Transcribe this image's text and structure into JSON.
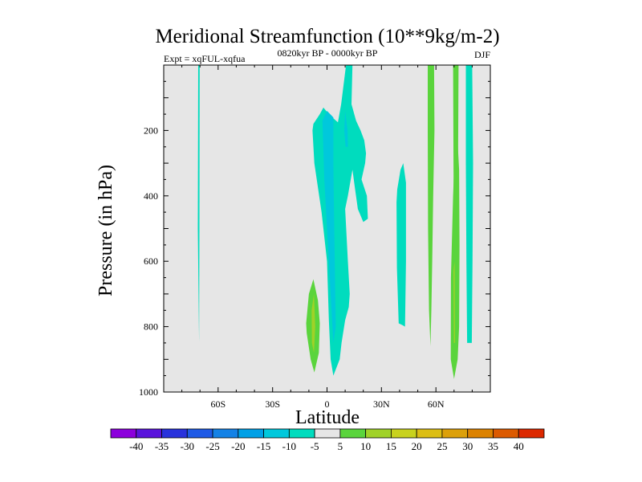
{
  "chart_data": {
    "type": "contour",
    "title": "Meridional Streamfunction (10**9kg/m-2)",
    "subtitle_left": "Expt = xqFUL-xqfua",
    "subtitle_center": "0820kyr BP - 0000kyr BP",
    "subtitle_right": "DJF",
    "xlabel": "Latitude",
    "ylabel": "Pressure (in hPa)",
    "xlim": [
      -90,
      90
    ],
    "ylim": [
      0,
      1000
    ],
    "y_inverted": true,
    "x_ticks": [
      {
        "value": -60,
        "label": "60S"
      },
      {
        "value": -30,
        "label": "30S"
      },
      {
        "value": 0,
        "label": "0"
      },
      {
        "value": 30,
        "label": "30N"
      },
      {
        "value": 60,
        "label": "60N"
      }
    ],
    "y_ticks": [
      {
        "value": 200,
        "label": "200"
      },
      {
        "value": 400,
        "label": "400"
      },
      {
        "value": 600,
        "label": "600"
      },
      {
        "value": 800,
        "label": "800"
      },
      {
        "value": 1000,
        "label": "1000"
      }
    ],
    "background_color": "#e6e6e6",
    "regions": [
      {
        "name": "-5",
        "color": "#00dcbe",
        "points": [
          [
            -71.0,
            0
          ],
          [
            -70.2,
            0
          ],
          [
            -70.3,
            500
          ],
          [
            -70.5,
            850
          ],
          [
            -71.2,
            500
          ]
        ]
      },
      {
        "name": "-5",
        "color": "#00dcbe",
        "points": [
          [
            -7.5,
            180
          ],
          [
            -4,
            150
          ],
          [
            -2,
            130
          ],
          [
            1,
            150
          ],
          [
            4,
            165
          ],
          [
            6,
            175
          ],
          [
            7.8,
            120
          ],
          [
            10.5,
            0
          ],
          [
            14,
            0
          ],
          [
            13.5,
            120
          ],
          [
            16,
            170
          ],
          [
            18.5,
            200
          ],
          [
            20.5,
            230
          ],
          [
            21.5,
            270
          ],
          [
            21,
            300
          ],
          [
            19,
            350
          ],
          [
            22,
            400
          ],
          [
            22.5,
            470
          ],
          [
            20,
            480
          ],
          [
            17,
            440
          ],
          [
            15.5,
            380
          ],
          [
            14,
            320
          ],
          [
            11.5,
            400
          ],
          [
            10,
            440
          ],
          [
            11.5,
            600
          ],
          [
            12.5,
            700
          ],
          [
            12,
            740
          ],
          [
            10,
            780
          ],
          [
            8,
            850
          ],
          [
            7,
            900
          ],
          [
            3.5,
            950
          ],
          [
            2,
            900
          ],
          [
            1,
            780
          ],
          [
            0,
            600
          ],
          [
            -3,
            450
          ],
          [
            -7,
            300
          ],
          [
            -8,
            200
          ]
        ]
      },
      {
        "name": "-5",
        "color": "#00dcbe",
        "points": [
          [
            38.7,
            380
          ],
          [
            40.5,
            320
          ],
          [
            42,
            300
          ],
          [
            43.5,
            360
          ],
          [
            43.5,
            600
          ],
          [
            43,
            800
          ],
          [
            41.5,
            795
          ],
          [
            39.5,
            790
          ],
          [
            38.5,
            620
          ],
          [
            38.3,
            420
          ]
        ]
      },
      {
        "name": "-5",
        "color": "#00dcbe",
        "points": [
          [
            76.5,
            0
          ],
          [
            80,
            0
          ],
          [
            80.5,
            300
          ],
          [
            80.2,
            600
          ],
          [
            79.8,
            850
          ],
          [
            78.5,
            850
          ],
          [
            77.2,
            850
          ],
          [
            76.8,
            600
          ],
          [
            76.5,
            300
          ]
        ]
      },
      {
        "name": "-10",
        "color": "#00c8dc",
        "points": [
          [
            -2.5,
            170
          ],
          [
            0,
            140
          ],
          [
            3.5,
            160
          ],
          [
            3.5,
            300
          ],
          [
            4,
            500
          ],
          [
            4.8,
            800
          ],
          [
            3.5,
            850
          ],
          [
            1,
            600
          ],
          [
            -1.5,
            350
          ]
        ]
      },
      {
        "name": "-10",
        "color": "#00c8dc",
        "points": [
          [
            10,
            140
          ],
          [
            11.3,
            200
          ],
          [
            11.5,
            250
          ],
          [
            10.2,
            250
          ],
          [
            9.5,
            200
          ]
        ]
      },
      {
        "name": "5",
        "color": "#5ad43c",
        "points": [
          [
            -11.5,
            790
          ],
          [
            -10,
            700
          ],
          [
            -7.5,
            655
          ],
          [
            -5,
            720
          ],
          [
            -4,
            790
          ],
          [
            -4.5,
            880
          ],
          [
            -7,
            940
          ],
          [
            -9,
            900
          ],
          [
            -11.2,
            820
          ]
        ]
      },
      {
        "name": "5",
        "color": "#5ad43c",
        "points": [
          [
            55.5,
            0
          ],
          [
            59,
            0
          ],
          [
            59.2,
            200
          ],
          [
            58.5,
            400
          ],
          [
            58,
            600
          ],
          [
            57.5,
            750
          ],
          [
            57,
            860
          ],
          [
            56.2,
            750
          ],
          [
            55.7,
            500
          ],
          [
            55.5,
            200
          ]
        ]
      },
      {
        "name": "5",
        "color": "#5ad43c",
        "points": [
          [
            69.5,
            0
          ],
          [
            72.5,
            0
          ],
          [
            72.3,
            200
          ],
          [
            72,
            500
          ],
          [
            72.2,
            750
          ],
          [
            71.5,
            850
          ],
          [
            70.5,
            850
          ],
          [
            70,
            600
          ],
          [
            69.7,
            300
          ]
        ]
      },
      {
        "name": "5",
        "color": "#5ad43c",
        "points": [
          [
            71,
            130
          ],
          [
            72.8,
            320
          ],
          [
            73,
            550
          ],
          [
            72.8,
            800
          ],
          [
            72,
            900
          ],
          [
            70,
            960
          ],
          [
            68.2,
            900
          ],
          [
            68.3,
            650
          ],
          [
            69.5,
            400
          ],
          [
            70.8,
            200
          ]
        ]
      },
      {
        "name": "10",
        "color": "#a0d228",
        "points": [
          [
            -8.5,
            750
          ],
          [
            -7.2,
            700
          ],
          [
            -6.5,
            800
          ],
          [
            -7.2,
            880
          ],
          [
            -8.3,
            850
          ]
        ]
      },
      {
        "name": "10",
        "color": "#a0d228",
        "points": [
          [
            69.7,
            630
          ],
          [
            70.3,
            600
          ],
          [
            70.5,
            850
          ],
          [
            69.9,
            850
          ]
        ]
      }
    ],
    "colorbar": {
      "levels": [
        -40,
        -35,
        -30,
        -25,
        -20,
        -15,
        -10,
        -5,
        5,
        10,
        15,
        20,
        25,
        30,
        35,
        40
      ],
      "colors": [
        "#8c00dc",
        "#5a14dc",
        "#2832dc",
        "#1e5ae6",
        "#1482e6",
        "#00a0e6",
        "#00c8dc",
        "#00dcbe",
        "#e6e6e6",
        "#5ad43c",
        "#a0d228",
        "#c8d21e",
        "#dcbe14",
        "#dca00a",
        "#dc8200",
        "#dc5a00",
        "#dc2800"
      ]
    }
  }
}
